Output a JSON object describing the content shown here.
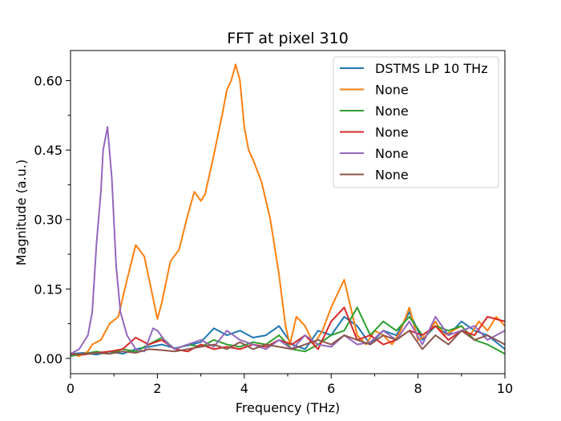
{
  "chart_data": {
    "type": "line",
    "title": "FFT at pixel 310",
    "xlabel": "Frequency (THz)",
    "ylabel": "Magnitude (a.u.)",
    "xlim": [
      0,
      10
    ],
    "ylim": [
      -0.033,
      0.665
    ],
    "xticks": [
      0,
      2,
      4,
      6,
      8,
      10
    ],
    "xtick_labels": [
      "0",
      "2",
      "4",
      "6",
      "8",
      "10"
    ],
    "yticks": [
      0.0,
      0.15,
      0.3,
      0.45,
      0.6
    ],
    "ytick_labels": [
      "0.00",
      "0.15",
      "0.30",
      "0.45",
      "0.60"
    ],
    "grid": false,
    "legend_position": "top-right",
    "series": [
      {
        "name": "DSTMS LP 10 THz",
        "color": "#1f77b4",
        "x": [
          0,
          0.3,
          0.6,
          0.9,
          1.2,
          1.5,
          1.8,
          2.1,
          2.4,
          2.7,
          3.0,
          3.3,
          3.6,
          3.9,
          4.2,
          4.5,
          4.8,
          5.1,
          5.4,
          5.7,
          6.0,
          6.3,
          6.6,
          6.9,
          7.2,
          7.5,
          7.8,
          8.1,
          8.4,
          8.7,
          9.0,
          9.3,
          9.6,
          10.0
        ],
        "y": [
          0.01,
          0.012,
          0.008,
          0.015,
          0.01,
          0.02,
          0.025,
          0.03,
          0.022,
          0.028,
          0.035,
          0.065,
          0.05,
          0.06,
          0.045,
          0.05,
          0.07,
          0.03,
          0.02,
          0.06,
          0.05,
          0.09,
          0.07,
          0.03,
          0.06,
          0.05,
          0.1,
          0.04,
          0.07,
          0.05,
          0.08,
          0.06,
          0.05,
          0.02
        ]
      },
      {
        "name": "None",
        "color": "#ff7f0e",
        "x": [
          0,
          0.2,
          0.4,
          0.5,
          0.7,
          0.9,
          1.1,
          1.3,
          1.5,
          1.7,
          1.9,
          2.0,
          2.1,
          2.3,
          2.5,
          2.7,
          2.85,
          3.0,
          3.1,
          3.3,
          3.5,
          3.6,
          3.7,
          3.8,
          3.9,
          4.0,
          4.1,
          4.2,
          4.4,
          4.6,
          4.8,
          4.95,
          5.05,
          5.2,
          5.4,
          5.6,
          5.8,
          6.0,
          6.2,
          6.3,
          6.4,
          6.6,
          6.8,
          7.0,
          7.2,
          7.4,
          7.6,
          7.8,
          8.0,
          8.2,
          8.4,
          8.6,
          8.8,
          9.0,
          9.2,
          9.4,
          9.6,
          9.8,
          10.0
        ],
        "y": [
          0.01,
          0.005,
          0.015,
          0.03,
          0.04,
          0.075,
          0.09,
          0.17,
          0.245,
          0.22,
          0.13,
          0.085,
          0.12,
          0.21,
          0.235,
          0.31,
          0.36,
          0.34,
          0.355,
          0.44,
          0.53,
          0.58,
          0.6,
          0.635,
          0.6,
          0.5,
          0.45,
          0.43,
          0.38,
          0.3,
          0.18,
          0.07,
          0.03,
          0.09,
          0.07,
          0.03,
          0.06,
          0.11,
          0.15,
          0.17,
          0.13,
          0.05,
          0.03,
          0.06,
          0.05,
          0.03,
          0.06,
          0.11,
          0.04,
          0.05,
          0.08,
          0.05,
          0.06,
          0.07,
          0.05,
          0.08,
          0.06,
          0.09,
          0.07
        ]
      },
      {
        "name": "None",
        "color": "#2ca02c",
        "x": [
          0,
          0.3,
          0.6,
          0.9,
          1.2,
          1.5,
          1.8,
          2.1,
          2.4,
          2.7,
          3.0,
          3.3,
          3.6,
          3.9,
          4.2,
          4.5,
          4.8,
          5.1,
          5.4,
          5.7,
          6.0,
          6.3,
          6.6,
          6.9,
          7.2,
          7.5,
          7.8,
          8.1,
          8.4,
          8.7,
          9.0,
          9.3,
          9.6,
          10.0
        ],
        "y": [
          0.005,
          0.01,
          0.015,
          0.01,
          0.02,
          0.015,
          0.03,
          0.045,
          0.02,
          0.03,
          0.025,
          0.04,
          0.03,
          0.025,
          0.035,
          0.03,
          0.05,
          0.02,
          0.015,
          0.03,
          0.05,
          0.06,
          0.11,
          0.05,
          0.08,
          0.06,
          0.09,
          0.05,
          0.07,
          0.06,
          0.07,
          0.04,
          0.03,
          0.01
        ]
      },
      {
        "name": "None",
        "color": "#d62728",
        "x": [
          0,
          0.3,
          0.6,
          0.9,
          1.2,
          1.5,
          1.8,
          2.1,
          2.4,
          2.7,
          3.0,
          3.3,
          3.6,
          3.9,
          4.2,
          4.5,
          4.8,
          5.1,
          5.4,
          5.7,
          6.0,
          6.3,
          6.6,
          6.9,
          7.2,
          7.5,
          7.8,
          8.1,
          8.4,
          8.7,
          9.0,
          9.3,
          9.6,
          10.0
        ],
        "y": [
          0.01,
          0.008,
          0.012,
          0.015,
          0.02,
          0.045,
          0.03,
          0.04,
          0.02,
          0.015,
          0.03,
          0.02,
          0.025,
          0.02,
          0.03,
          0.025,
          0.04,
          0.03,
          0.05,
          0.02,
          0.08,
          0.11,
          0.04,
          0.05,
          0.03,
          0.04,
          0.06,
          0.05,
          0.07,
          0.04,
          0.06,
          0.05,
          0.09,
          0.08
        ]
      },
      {
        "name": "None",
        "color": "#9467bd",
        "x": [
          0,
          0.2,
          0.4,
          0.5,
          0.6,
          0.7,
          0.75,
          0.85,
          0.95,
          1.05,
          1.15,
          1.3,
          1.5,
          1.7,
          1.9,
          2.0,
          2.2,
          2.4,
          2.7,
          3.0,
          3.3,
          3.6,
          3.9,
          4.2,
          4.5,
          4.8,
          5.1,
          5.4,
          5.7,
          6.0,
          6.3,
          6.6,
          6.9,
          7.2,
          7.5,
          7.8,
          8.1,
          8.4,
          8.7,
          9.0,
          9.3,
          9.6,
          10.0
        ],
        "y": [
          0.01,
          0.02,
          0.05,
          0.1,
          0.25,
          0.36,
          0.45,
          0.5,
          0.39,
          0.2,
          0.1,
          0.05,
          0.02,
          0.015,
          0.065,
          0.06,
          0.035,
          0.02,
          0.03,
          0.04,
          0.025,
          0.06,
          0.04,
          0.03,
          0.02,
          0.04,
          0.02,
          0.05,
          0.03,
          0.025,
          0.05,
          0.03,
          0.035,
          0.06,
          0.04,
          0.08,
          0.03,
          0.09,
          0.05,
          0.06,
          0.07,
          0.04,
          0.06
        ]
      },
      {
        "name": "None",
        "color": "#8c564b",
        "x": [
          0,
          0.3,
          0.6,
          0.9,
          1.2,
          1.5,
          1.8,
          2.1,
          2.4,
          2.7,
          3.0,
          3.3,
          3.6,
          3.9,
          4.2,
          4.5,
          4.8,
          5.1,
          5.4,
          5.7,
          6.0,
          6.3,
          6.6,
          6.9,
          7.2,
          7.5,
          7.8,
          8.1,
          8.4,
          8.7,
          9.0,
          9.3,
          9.6,
          10.0
        ],
        "y": [
          0.008,
          0.01,
          0.012,
          0.01,
          0.015,
          0.012,
          0.02,
          0.018,
          0.015,
          0.02,
          0.025,
          0.03,
          0.02,
          0.035,
          0.02,
          0.03,
          0.025,
          0.02,
          0.03,
          0.04,
          0.03,
          0.05,
          0.04,
          0.03,
          0.05,
          0.04,
          0.06,
          0.02,
          0.05,
          0.03,
          0.06,
          0.04,
          0.05,
          0.03
        ]
      }
    ]
  }
}
